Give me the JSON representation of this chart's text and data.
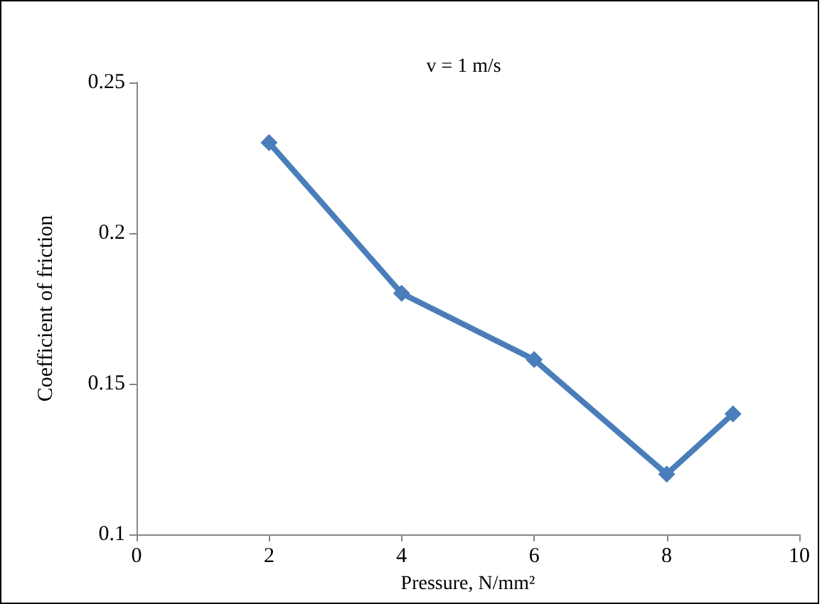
{
  "chart_data": {
    "type": "line",
    "title": "v = 1 m/s",
    "xlabel": "Pressure, N/mm²",
    "ylabel": "Coefficient of friction",
    "x": [
      2,
      4,
      6,
      8,
      9
    ],
    "series": [
      {
        "color": "#4a7ebb",
        "values": [
          0.23,
          0.18,
          0.158,
          0.12,
          0.14
        ]
      }
    ],
    "xlim": [
      0,
      10
    ],
    "xticks": [
      0,
      2,
      4,
      6,
      8,
      10
    ],
    "ylim": [
      0.1,
      0.25
    ],
    "yticks": [
      0.1,
      0.15,
      0.2,
      0.25
    ],
    "grid": false,
    "marker": "diamond",
    "line_style": "solid"
  }
}
